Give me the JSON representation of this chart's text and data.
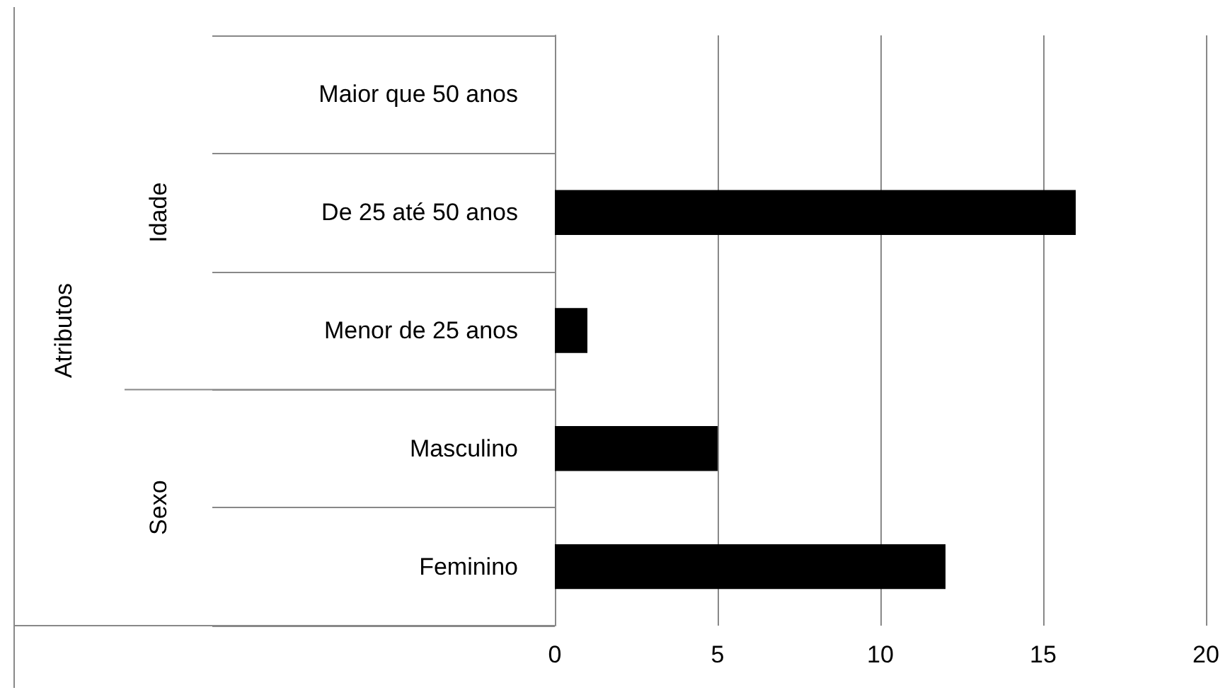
{
  "chart_data": {
    "type": "bar",
    "orientation": "horizontal",
    "categories": [
      "Maior que 50 anos",
      "De 25 até 50 anos",
      "Menor de 25 anos",
      "Masculino",
      "Feminino"
    ],
    "values": [
      0,
      16,
      1,
      5,
      12
    ],
    "color": "#000000",
    "xlim": [
      0,
      20
    ],
    "xticks": [
      0,
      5,
      10,
      15,
      20
    ],
    "grid": "x",
    "annotations": [
      "Atributos",
      "Idade",
      "Sexo"
    ]
  }
}
